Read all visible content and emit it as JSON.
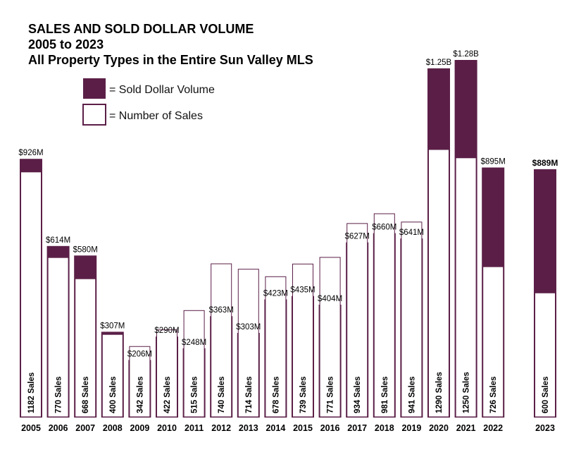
{
  "chart_data": {
    "type": "bar",
    "title": [
      "SALES AND SOLD DOLLAR VOLUME",
      "2005 to 2023",
      "All Property Types in the Entire Sun Valley MLS"
    ],
    "legend": [
      {
        "label": "= Sold Dollar Volume",
        "color": "#5b1f47"
      },
      {
        "label": "= Number of Sales",
        "color": "#ffffff"
      }
    ],
    "legend_position": "top-left",
    "colors": {
      "volume": "#5b1f47",
      "sales_fill": "#ffffff",
      "sales_stroke": "#5b1f47"
    },
    "categories": [
      "2005",
      "2006",
      "2007",
      "2008",
      "2009",
      "2010",
      "2011",
      "2012",
      "2013",
      "2014",
      "2015",
      "2016",
      "2017",
      "2018",
      "2019",
      "2020",
      "2021",
      "2022",
      "2023"
    ],
    "volume_labels": [
      "$926M",
      "$614M",
      "$580M",
      "$307M",
      "$206M",
      "$290M",
      "$248M",
      "$363M",
      "$303M",
      "$423M",
      "$435M",
      "$404M",
      "$627M",
      "$660M",
      "$641M",
      "$1.25B",
      "$1.28B",
      "$895M",
      "$889M"
    ],
    "volume_values_millions": [
      926,
      614,
      580,
      307,
      206,
      290,
      248,
      363,
      303,
      423,
      435,
      404,
      627,
      660,
      641,
      1250,
      1280,
      895,
      889
    ],
    "sales_labels": [
      "1182 Sales",
      "770 Sales",
      "668 Sales",
      "400 Sales",
      "342 Sales",
      "422 Sales",
      "515 Sales",
      "740 Sales",
      "714 Sales",
      "678 Sales",
      "739 Sales",
      "771 Sales",
      "934 Sales",
      "981 Sales",
      "941 Sales",
      "1290 Sales",
      "1250 Sales",
      "726 Sales",
      "600 Sales"
    ],
    "sales_values": [
      1182,
      770,
      668,
      400,
      342,
      422,
      515,
      740,
      714,
      678,
      739,
      771,
      934,
      981,
      941,
      1290,
      1250,
      726,
      600
    ],
    "highlight_index": 18,
    "grid": false
  }
}
